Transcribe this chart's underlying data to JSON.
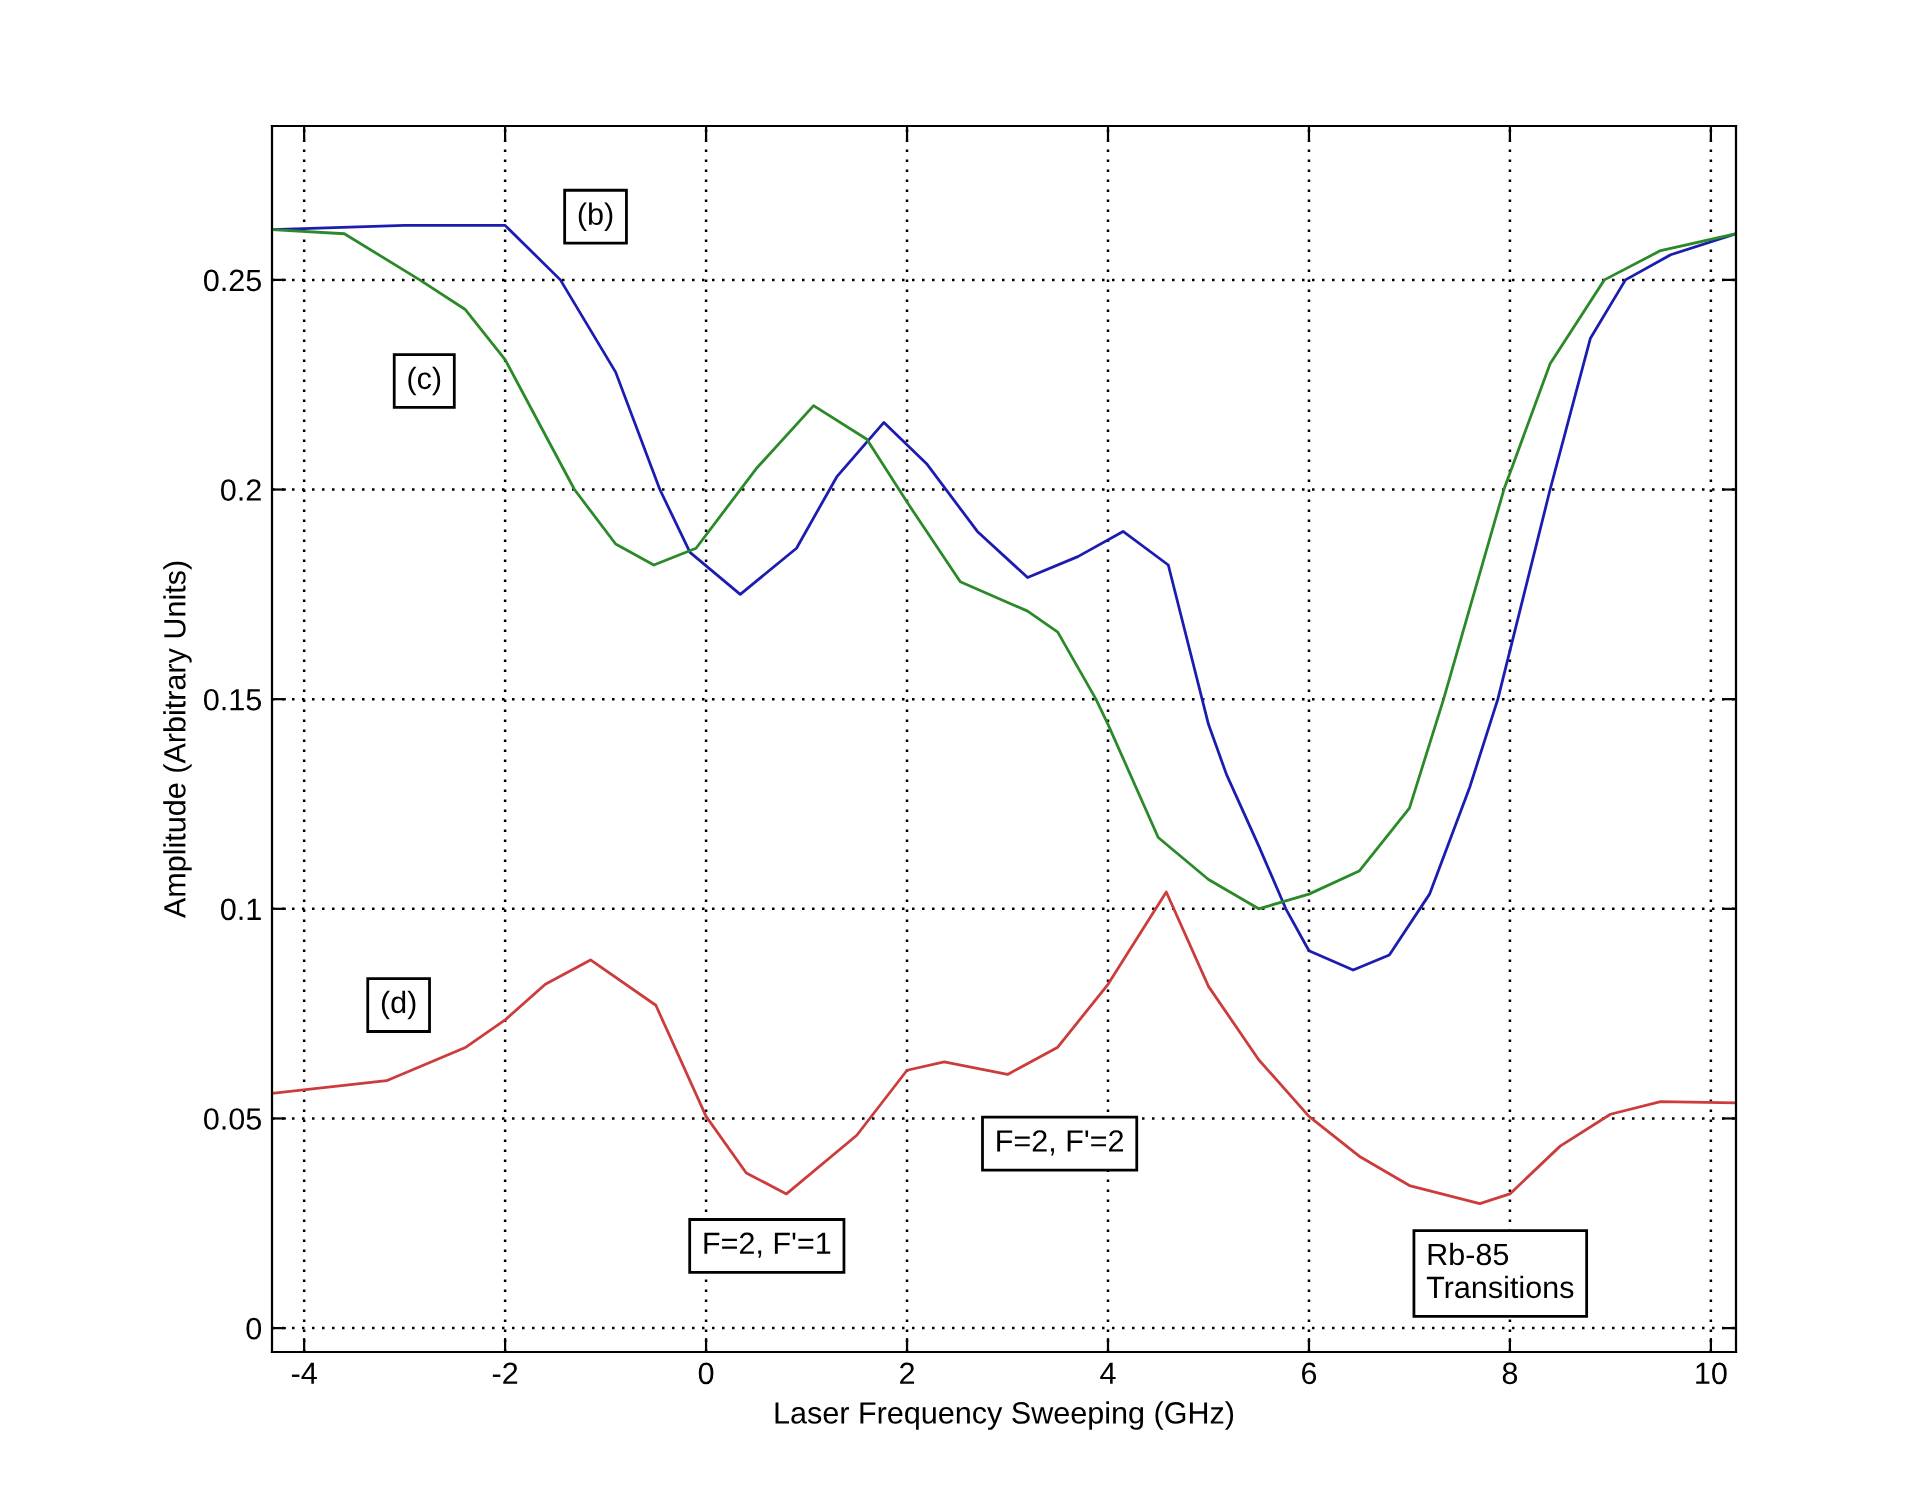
{
  "chart_data": {
    "type": "line",
    "xlabel": "Laser Frequency Sweeping (GHz)",
    "ylabel": "Amplitude (Arbitrary Units)",
    "xlim": [
      -4.32,
      10.25
    ],
    "ylim": [
      -0.0057,
      0.2867
    ],
    "xticks": [
      -4,
      -2,
      0,
      2,
      4,
      6,
      8,
      10
    ],
    "yticks": [
      0,
      0.05,
      0.1,
      0.15,
      0.2,
      0.25
    ],
    "grid": true,
    "line_style": "solid",
    "series": [
      {
        "color": "#1c1cb0",
        "x": [
          -4.32,
          -3,
          -2,
          -1.45,
          -0.9,
          -0.46,
          -0.16,
          0.34,
          0.9,
          1.3,
          1.77,
          2.2,
          2.7,
          3.2,
          3.7,
          4.15,
          4.6,
          5.0,
          5.18,
          5.5,
          5.77,
          6.0,
          6.44,
          6.8,
          7.2,
          7.6,
          7.88,
          8.4,
          8.8,
          9.15,
          9.6,
          10.25
        ],
        "values": [
          0.262,
          0.263,
          0.263,
          0.25,
          0.228,
          0.2,
          0.185,
          0.175,
          0.186,
          0.203,
          0.216,
          0.206,
          0.19,
          0.179,
          0.184,
          0.19,
          0.182,
          0.144,
          0.132,
          0.115,
          0.1,
          0.09,
          0.0854,
          0.089,
          0.1035,
          0.129,
          0.15,
          0.2,
          0.236,
          0.25,
          0.256,
          0.261
        ]
      },
      {
        "color": "#2a8a2a",
        "x": [
          -4.32,
          -3.6,
          -2.85,
          -2.4,
          -2,
          -1.6,
          -1.31,
          -0.9,
          -0.52,
          -0.1,
          0.5,
          1.07,
          1.6,
          2.0,
          2.53,
          3.2,
          3.5,
          3.88,
          4.0,
          4.5,
          5.0,
          5.5,
          6.0,
          6.5,
          7.0,
          7.34,
          7.94,
          8.4,
          8.94,
          9.5,
          10.25
        ],
        "values": [
          0.262,
          0.261,
          0.25,
          0.243,
          0.231,
          0.213,
          0.2,
          0.187,
          0.182,
          0.186,
          0.205,
          0.22,
          0.212,
          0.197,
          0.178,
          0.171,
          0.166,
          0.15,
          0.144,
          0.117,
          0.107,
          0.1,
          0.1035,
          0.109,
          0.124,
          0.15,
          0.2,
          0.23,
          0.25,
          0.257,
          0.261
        ]
      },
      {
        "color": "#cc3c3c",
        "x": [
          -4.32,
          -3.18,
          -2.39,
          -2,
          -1.6,
          -1.15,
          -0.5,
          0,
          0.4,
          0.8,
          1.5,
          2.0,
          2.37,
          3.0,
          3.5,
          4.0,
          4.58,
          5.0,
          5.5,
          6.0,
          6.5,
          7.0,
          7.7,
          8.0,
          8.5,
          9.0,
          9.5,
          10.25
        ],
        "values": [
          0.056,
          0.059,
          0.067,
          0.0735,
          0.082,
          0.0878,
          0.077,
          0.0505,
          0.037,
          0.032,
          0.046,
          0.0615,
          0.0635,
          0.0605,
          0.067,
          0.082,
          0.104,
          0.0815,
          0.064,
          0.0505,
          0.041,
          0.034,
          0.0297,
          0.032,
          0.0434,
          0.051,
          0.054,
          0.0537
        ]
      }
    ],
    "annotations": [
      "(b)",
      "(c)",
      "(d)",
      "F=2, F'=1",
      "F=2, F'=2",
      "Rb-85\nTransitions"
    ]
  }
}
